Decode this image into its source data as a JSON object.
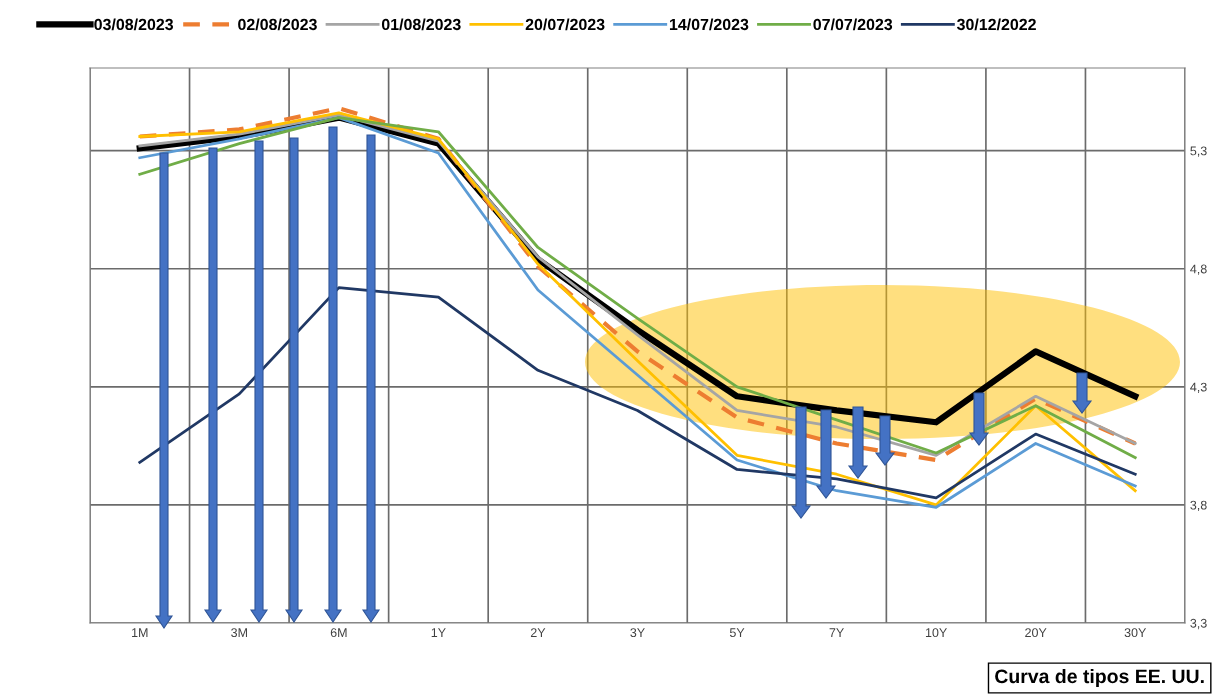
{
  "chart_data": {
    "type": "line",
    "categories": [
      "1M",
      "3M",
      "6M",
      "1Y",
      "2Y",
      "3Y",
      "5Y",
      "7Y",
      "10Y",
      "20Y",
      "30Y"
    ],
    "series": [
      {
        "name": "03/08/2023",
        "color": "#000000",
        "values": [
          5.31,
          5.36,
          5.44,
          5.33,
          4.84,
          4.54,
          4.26,
          4.2,
          4.15,
          4.45,
          4.26
        ]
      },
      {
        "name": "02/08/2023",
        "color": "#ed7d31",
        "line_style": "dashed",
        "values": [
          5.36,
          5.39,
          5.48,
          5.35,
          4.81,
          4.45,
          4.17,
          4.06,
          3.99,
          4.25,
          4.06
        ]
      },
      {
        "name": "01/08/2023",
        "color": "#a5a5a5",
        "values": [
          5.32,
          5.37,
          5.45,
          5.34,
          4.85,
          4.52,
          4.2,
          4.13,
          4.01,
          4.26,
          4.06
        ]
      },
      {
        "name": "20/07/2023",
        "color": "#ffc000",
        "values": [
          5.36,
          5.38,
          5.46,
          5.35,
          4.82,
          4.41,
          4.01,
          3.93,
          3.8,
          4.22,
          3.86
        ]
      },
      {
        "name": "14/07/2023",
        "color": "#5b9bd5",
        "values": [
          5.27,
          5.35,
          5.44,
          5.29,
          4.71,
          4.35,
          3.99,
          3.86,
          3.79,
          4.06,
          3.88
        ]
      },
      {
        "name": "07/07/2023",
        "color": "#70ad47",
        "values": [
          5.2,
          5.33,
          5.44,
          5.38,
          4.89,
          4.59,
          4.3,
          4.16,
          4.02,
          4.22,
          4.0
        ]
      },
      {
        "name": "30/12/2022",
        "color": "#203864",
        "values": [
          3.98,
          4.27,
          4.72,
          4.68,
          4.37,
          4.2,
          3.95,
          3.91,
          3.83,
          4.1,
          3.93
        ]
      }
    ],
    "ylim": [
      3.3,
      5.65
    ],
    "yticks": [
      {
        "value": 3.3,
        "label": "3,3"
      },
      {
        "value": 3.8,
        "label": "3,8"
      },
      {
        "value": 4.3,
        "label": "4,3"
      },
      {
        "value": 4.8,
        "label": "4,8"
      },
      {
        "value": 5.3,
        "label": "5,3"
      }
    ],
    "grid": true,
    "legend": "top",
    "marker": "none",
    "line_style": "solid",
    "annotations": [
      "Curva de tipos EE. UU."
    ]
  }
}
